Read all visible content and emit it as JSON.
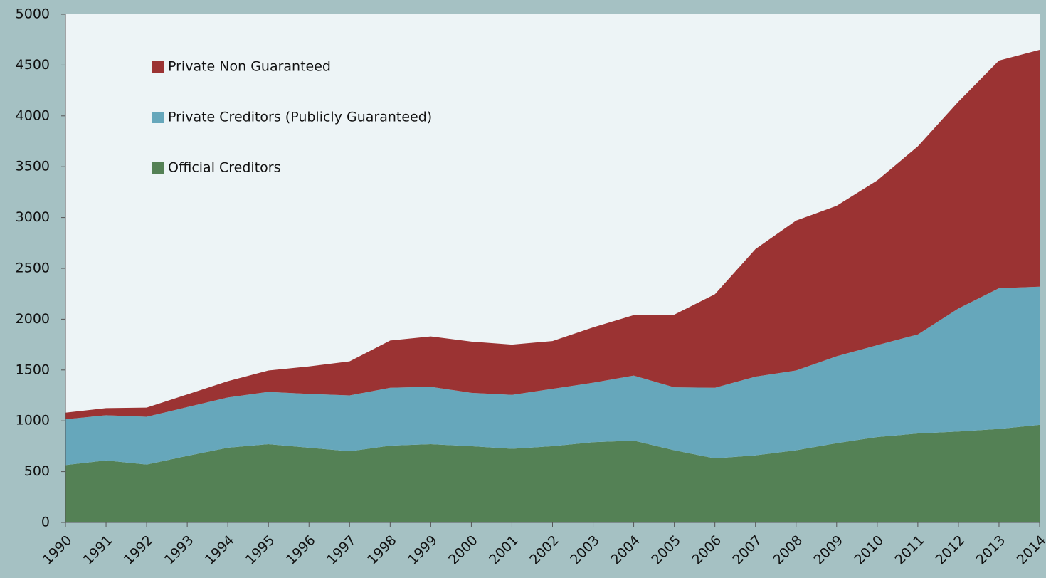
{
  "chart_data": {
    "type": "stacked_area",
    "categories": [
      "1990",
      "1991",
      "1992",
      "1993",
      "1994",
      "1995",
      "1996",
      "1997",
      "1998",
      "1999",
      "2000",
      "2001",
      "2002",
      "2003",
      "2004",
      "2005",
      "2006",
      "2007",
      "2008",
      "2009",
      "2010",
      "2011",
      "2012",
      "2013",
      "2014"
    ],
    "series": [
      {
        "name": "Official Creditors",
        "color": "#548155",
        "values": [
          565,
          610,
          570,
          655,
          735,
          770,
          735,
          700,
          755,
          770,
          750,
          725,
          750,
          790,
          805,
          710,
          630,
          660,
          710,
          780,
          840,
          875,
          895,
          920,
          960
        ]
      },
      {
        "name": "Private Creditors (Publicly Guaranteed)",
        "color": "#66a7bb",
        "values": [
          450,
          445,
          470,
          480,
          495,
          515,
          530,
          550,
          570,
          565,
          525,
          530,
          565,
          585,
          640,
          620,
          695,
          775,
          785,
          855,
          905,
          975,
          1210,
          1385,
          1360
        ]
      },
      {
        "name": "Private Non Guaranteed",
        "color": "#9b3333",
        "values": [
          65,
          70,
          90,
          125,
          160,
          210,
          270,
          335,
          465,
          495,
          505,
          495,
          470,
          545,
          595,
          715,
          920,
          1255,
          1475,
          1480,
          1620,
          1850,
          2035,
          2240,
          2330
        ]
      }
    ],
    "ylim": [
      0,
      5000
    ],
    "yticks": [
      0,
      500,
      1000,
      1500,
      2000,
      2500,
      3000,
      3500,
      4000,
      4500,
      5000
    ],
    "grid": false,
    "legend": "upper left"
  }
}
